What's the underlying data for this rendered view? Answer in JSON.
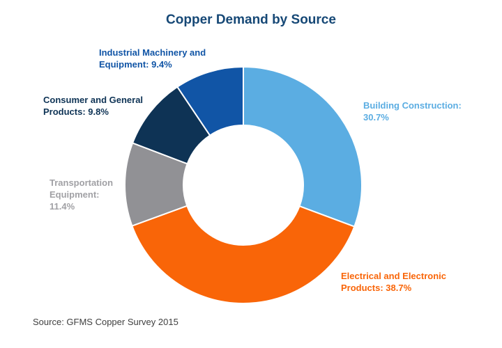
{
  "title": "Copper Demand by Source",
  "chart_data": {
    "type": "pie",
    "variant": "donut",
    "title": "Copper Demand by Source",
    "categories": [
      "Building Construction",
      "Electrical and Electronic Products",
      "Transportation Equipment",
      "Consumer and General Products",
      "Industrial Machinery and Equipment"
    ],
    "values": [
      30.7,
      38.7,
      11.4,
      9.8,
      9.4
    ],
    "unit": "%",
    "colors": [
      "#5BADE2",
      "#F96508",
      "#919195",
      "#0E3355",
      "#1155A6"
    ],
    "slice_ids": [
      "building-construction",
      "electrical-and-electronic-products",
      "transportation-equipment",
      "consumer-and-general-products",
      "industrial-machinery-and-equipment"
    ],
    "callouts": [
      {
        "text": "Building Construction:\n30.7%",
        "color": "#5BADE2"
      },
      {
        "text": "Electrical and Electronic\nProducts: 38.7%",
        "color": "#F96508"
      },
      {
        "text": "Transportation\nEquipment:\n11.4%",
        "color": "#A1A1A5"
      },
      {
        "text": "Consumer and General\nProducts: 9.8%",
        "color": "#0E3355"
      },
      {
        "text": "Industrial Machinery and\nEquipment: 9.4%",
        "color": "#1155A6"
      }
    ],
    "start_angle_deg": 0,
    "direction": "clockwise",
    "inner_radius_ratio": 0.506,
    "legend_position": "none",
    "source": "Source: GFMS Copper Survey 2015"
  }
}
